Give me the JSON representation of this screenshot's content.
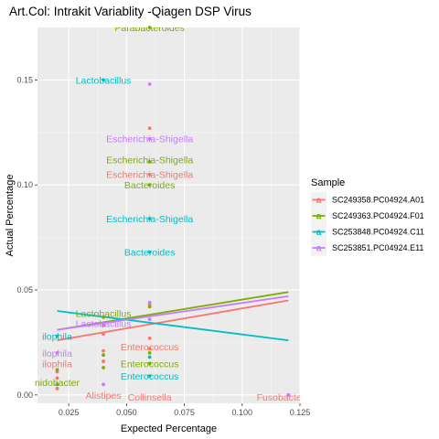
{
  "chart_data": {
    "type": "scatter",
    "title": "Art.Col: Intrakit Variablity -Qiagen DSP Virus",
    "xlabel": "Expected Percentage",
    "ylabel": "Actual Percentage",
    "xlim": [
      0.0115,
      0.125
    ],
    "ylim": [
      -0.004,
      0.175
    ],
    "x_ticks": [
      0.025,
      0.05,
      0.075,
      0.1,
      0.125
    ],
    "x_tick_labels": [
      "0.025",
      "0.050",
      "0.075",
      "0.100",
      "0.125"
    ],
    "y_ticks": [
      0.0,
      0.05,
      0.1,
      0.15
    ],
    "y_tick_labels": [
      "0.00",
      "0.05",
      "0.10",
      "0.15"
    ],
    "grid": true,
    "legend_title": "Sample",
    "legend_position": "right",
    "series": [
      {
        "name": "SC249358.PC04924.A01",
        "color": "#F8766D",
        "points": [
          {
            "x": 0.02,
            "y": 0.003
          },
          {
            "x": 0.02,
            "y": 0.008
          },
          {
            "x": 0.02,
            "y": 0.011
          },
          {
            "x": 0.04,
            "y": 0.016
          },
          {
            "x": 0.04,
            "y": 0.021
          },
          {
            "x": 0.04,
            "y": 0.029
          },
          {
            "x": 0.04,
            "y": 0.033
          },
          {
            "x": 0.06,
            "y": 0.022
          },
          {
            "x": 0.06,
            "y": 0.027
          },
          {
            "x": 0.06,
            "y": 0.043
          },
          {
            "x": 0.06,
            "y": 0.105
          },
          {
            "x": 0.06,
            "y": 0.127
          },
          {
            "x": 0.12,
            "y": 0.0
          }
        ],
        "trend": [
          {
            "x": 0.02,
            "y": 0.026
          },
          {
            "x": 0.12,
            "y": 0.045
          }
        ],
        "labels": [
          {
            "text": "ilophila",
            "x": 0.02,
            "y": 0.015
          },
          {
            "text": "Alistipes",
            "x": 0.04,
            "y": 0.0
          },
          {
            "text": "Enterococcus",
            "x": 0.06,
            "y": 0.023
          },
          {
            "text": "Escherichia-Shigella",
            "x": 0.06,
            "y": 0.105
          },
          {
            "text": "Collinsella",
            "x": 0.06,
            "y": -0.001
          },
          {
            "text": "Fusobacterium",
            "x": 0.12,
            "y": -0.001
          }
        ]
      },
      {
        "name": "SC249363.PC04924.F01",
        "color": "#7CAE00",
        "points": [
          {
            "x": 0.02,
            "y": 0.005
          },
          {
            "x": 0.02,
            "y": 0.012
          },
          {
            "x": 0.04,
            "y": 0.013
          },
          {
            "x": 0.04,
            "y": 0.019
          },
          {
            "x": 0.04,
            "y": 0.037
          },
          {
            "x": 0.06,
            "y": 0.015
          },
          {
            "x": 0.06,
            "y": 0.02
          },
          {
            "x": 0.06,
            "y": 0.042
          },
          {
            "x": 0.06,
            "y": 0.1
          },
          {
            "x": 0.06,
            "y": 0.111
          },
          {
            "x": 0.06,
            "y": 0.175
          }
        ],
        "trend": [
          {
            "x": 0.02,
            "y": 0.031
          },
          {
            "x": 0.12,
            "y": 0.049
          }
        ],
        "labels": [
          {
            "text": "nidobacter",
            "x": 0.02,
            "y": 0.006
          },
          {
            "text": "Lactobacillus",
            "x": 0.04,
            "y": 0.039
          },
          {
            "text": "Enterococcus",
            "x": 0.06,
            "y": 0.015
          },
          {
            "text": "Bacteroides",
            "x": 0.06,
            "y": 0.1
          },
          {
            "text": "Escherichia-Shigella",
            "x": 0.06,
            "y": 0.112
          },
          {
            "text": "Parabacteroides",
            "x": 0.06,
            "y": 0.175
          }
        ]
      },
      {
        "name": "SC253848.PC04924.C11",
        "color": "#00BFC4",
        "points": [
          {
            "x": 0.02,
            "y": 0.028
          },
          {
            "x": 0.04,
            "y": 0.034
          },
          {
            "x": 0.04,
            "y": 0.15
          },
          {
            "x": 0.06,
            "y": 0.009
          },
          {
            "x": 0.06,
            "y": 0.018
          },
          {
            "x": 0.06,
            "y": 0.068
          },
          {
            "x": 0.06,
            "y": 0.084
          }
        ],
        "trend": [
          {
            "x": 0.02,
            "y": 0.04
          },
          {
            "x": 0.12,
            "y": 0.026
          }
        ],
        "labels": [
          {
            "text": "ilophila",
            "x": 0.02,
            "y": 0.028
          },
          {
            "text": "Lactobacillus",
            "x": 0.04,
            "y": 0.15
          },
          {
            "text": "Enterococcus",
            "x": 0.06,
            "y": 0.009
          },
          {
            "text": "Bacteroides",
            "x": 0.06,
            "y": 0.068
          },
          {
            "text": "Escherichia-Shigella",
            "x": 0.06,
            "y": 0.084
          }
        ]
      },
      {
        "name": "SC253851.PC04924.E11",
        "color": "#C77CFF",
        "points": [
          {
            "x": 0.02,
            "y": 0.02
          },
          {
            "x": 0.04,
            "y": 0.005
          },
          {
            "x": 0.04,
            "y": 0.034
          },
          {
            "x": 0.06,
            "y": 0.036
          },
          {
            "x": 0.06,
            "y": 0.044
          },
          {
            "x": 0.06,
            "y": 0.122
          },
          {
            "x": 0.06,
            "y": 0.148
          },
          {
            "x": 0.12,
            "y": 0.0
          }
        ],
        "trend": [
          {
            "x": 0.02,
            "y": 0.031
          },
          {
            "x": 0.12,
            "y": 0.047
          }
        ],
        "labels": [
          {
            "text": "ilophila",
            "x": 0.02,
            "y": 0.02
          },
          {
            "text": "Lactobacillus",
            "x": 0.04,
            "y": 0.034
          },
          {
            "text": "Escherichia-Shigella",
            "x": 0.06,
            "y": 0.122
          }
        ]
      }
    ]
  }
}
